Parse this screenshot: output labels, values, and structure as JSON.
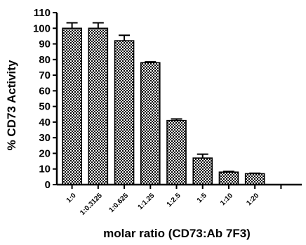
{
  "chart_data": {
    "type": "bar",
    "title": "",
    "xlabel": "molar ratio (CD73:Ab 7F3)",
    "ylabel": "% CD73 Activity",
    "categories": [
      "1:0",
      "1:0.3125",
      "1:0.625",
      "1:1.25",
      "1:2.5",
      "1:5",
      "1:10",
      "1:20"
    ],
    "values": [
      100,
      100,
      92,
      78,
      41,
      17,
      8,
      7
    ],
    "errors": [
      3.5,
      3.5,
      3.5,
      0.5,
      1,
      2.5,
      0.5,
      0.3
    ],
    "ylim": [
      0,
      110
    ],
    "yticks": [
      0,
      10,
      20,
      30,
      40,
      50,
      60,
      70,
      80,
      90,
      100,
      110
    ],
    "grid": false,
    "bar_pattern": "crosshatch",
    "bar_color": "#000000"
  }
}
